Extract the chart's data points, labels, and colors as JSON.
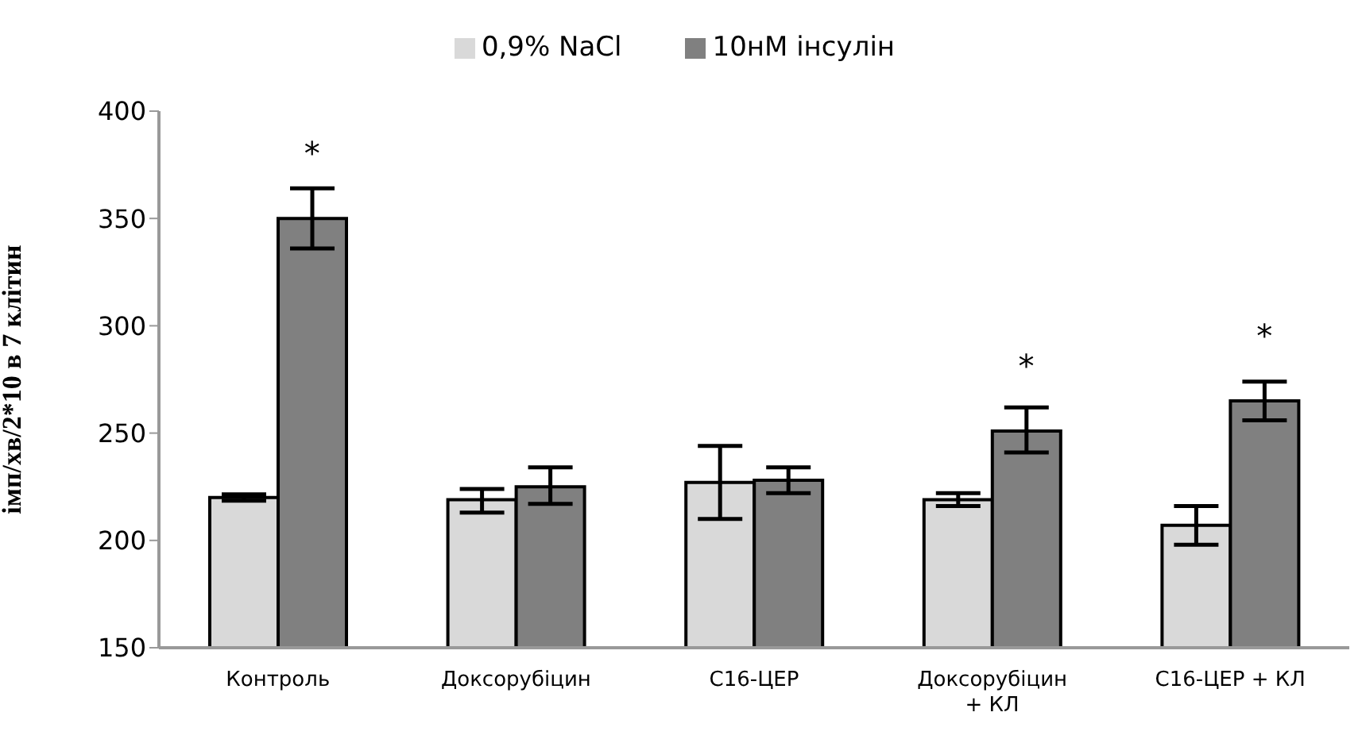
{
  "chart_data": {
    "type": "bar",
    "ylabel": "імп/хв/2*10 в 7 клітин",
    "categories": [
      "Контроль",
      "Доксорубіцин",
      "С16-ЦЕР",
      "Доксорубіцин + КЛ",
      "С16-ЦЕР + КЛ"
    ],
    "series": [
      {
        "name": "0,9% NaCl",
        "color": "#d9d9d9",
        "values": [
          220,
          219,
          227,
          219,
          207
        ],
        "errors": [
          [
            218.5,
            221.5
          ],
          [
            213,
            224
          ],
          [
            210,
            244
          ],
          [
            216,
            222
          ],
          [
            198,
            216
          ]
        ]
      },
      {
        "name": "10нМ інсулін",
        "color": "#808080",
        "values": [
          350,
          225,
          228,
          251,
          265
        ],
        "errors": [
          [
            336,
            364
          ],
          [
            217,
            234
          ],
          [
            222,
            234
          ],
          [
            241,
            262
          ],
          [
            256,
            274
          ]
        ]
      }
    ],
    "ylim": [
      150,
      400
    ],
    "yticks": [
      150,
      200,
      250,
      300,
      350,
      400
    ],
    "grid": false,
    "legend": "top",
    "annotations": [
      {
        "text": "*",
        "x": "Контроль",
        "y": 350
      },
      {
        "text": "*",
        "x": "Доксорубіцин + КЛ",
        "y": 251
      },
      {
        "text": "*",
        "x": "С16-ЦЕР + КЛ",
        "y": 265
      }
    ]
  }
}
